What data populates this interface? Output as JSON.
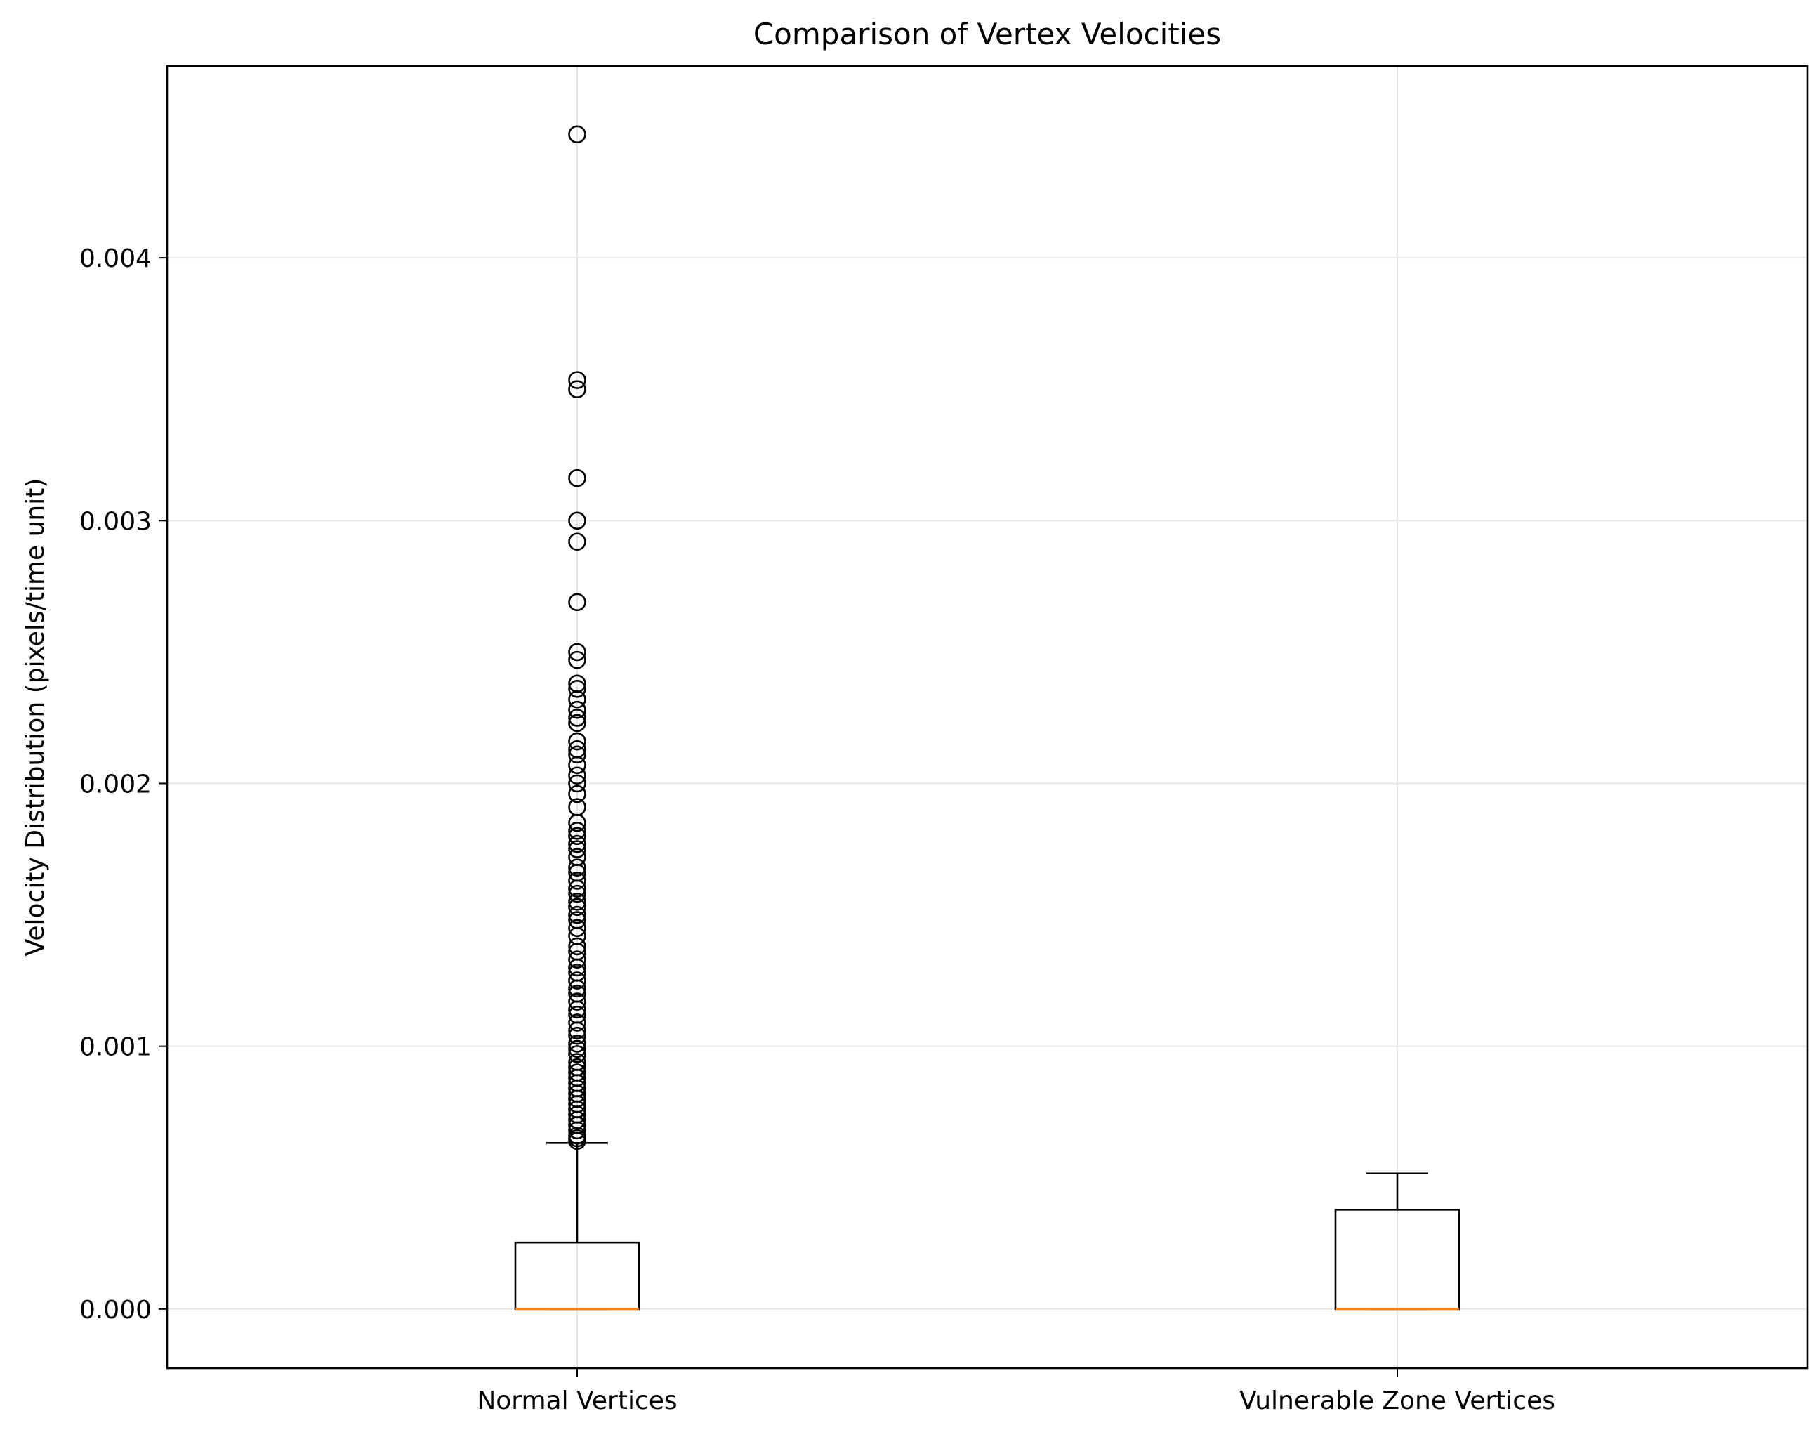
{
  "chart_data": {
    "type": "box",
    "title": "Comparison of Vertex Velocities",
    "xlabel": "",
    "ylabel": "Velocity Distribution (pixels/time unit)",
    "ylim": [
      -0.000225,
      0.00473
    ],
    "yticks": [
      0.0,
      0.001,
      0.002,
      0.003,
      0.004
    ],
    "ytick_labels": [
      "0.000",
      "0.001",
      "0.002",
      "0.003",
      "0.004"
    ],
    "grid": true,
    "legend": "none",
    "colors": {
      "box": "#000000",
      "median": "#ff7f0e",
      "grid": "#e6e6e6",
      "flier": "#000000"
    },
    "categories": [
      "Normal Vertices",
      "Vulnerable Zone Vertices"
    ],
    "boxes": [
      {
        "label": "Normal Vertices",
        "whisker_low": 0.0,
        "q1": 0.0,
        "median": 0.0,
        "q3": 0.000253,
        "whisker_high": 0.000632,
        "fliers": [
          0.00447,
          0.003535,
          0.0035,
          0.003162,
          0.003,
          0.00292,
          0.00269,
          0.0025,
          0.00247,
          0.00238,
          0.00236,
          0.00232,
          0.00228,
          0.00225,
          0.00223,
          0.00216,
          0.00213,
          0.00211,
          0.00207,
          0.00203,
          0.002,
          0.00196,
          0.00191,
          0.00185,
          0.00182,
          0.0018,
          0.00177,
          0.00175,
          0.00172,
          0.00168,
          0.00166,
          0.00163,
          0.0016,
          0.00158,
          0.00155,
          0.00153,
          0.0015,
          0.00148,
          0.00145,
          0.00142,
          0.00138,
          0.00136,
          0.00133,
          0.0013,
          0.00128,
          0.00125,
          0.00122,
          0.0012,
          0.00117,
          0.00114,
          0.00112,
          0.00109,
          0.00106,
          0.00104,
          0.00101,
          0.00099,
          0.00097,
          0.00094,
          0.00092,
          0.0009,
          0.00088,
          0.00086,
          0.00084,
          0.00082,
          0.0008,
          0.00078,
          0.00076,
          0.00074,
          0.00072,
          0.0007,
          0.00068,
          0.00066,
          0.00065,
          0.00064
        ]
      },
      {
        "label": "Vulnerable Zone Vertices",
        "whisker_low": 0.0,
        "q1": 0.0,
        "median": 0.0,
        "q3": 0.000378,
        "whisker_high": 0.000516,
        "fliers": []
      }
    ]
  }
}
